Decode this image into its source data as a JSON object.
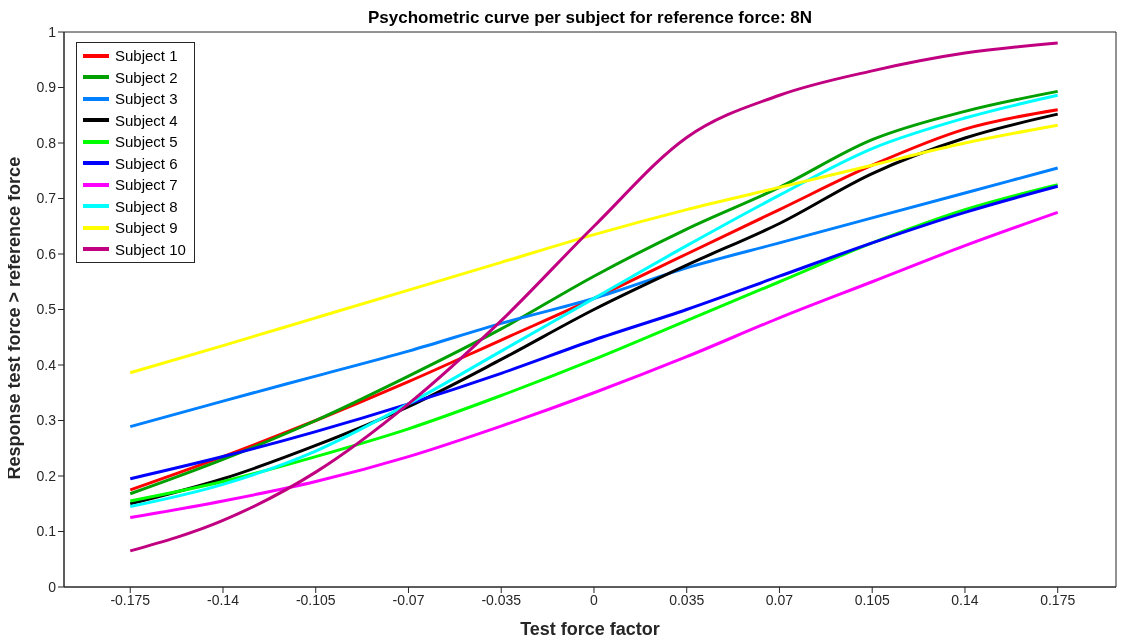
{
  "chart_data": {
    "type": "line",
    "title": "Psychometric curve per subject for reference force: 8N",
    "xlabel": "Test force factor",
    "ylabel": "Response test force > reference force",
    "x": [
      -0.175,
      -0.14,
      -0.105,
      -0.07,
      -0.035,
      0,
      0.035,
      0.07,
      0.105,
      0.14,
      0.175
    ],
    "series": [
      {
        "name": "Subject 1",
        "color": "#ff0000",
        "values": [
          0.175,
          0.235,
          0.3,
          0.37,
          0.445,
          0.52,
          0.6,
          0.68,
          0.76,
          0.825,
          0.86
        ]
      },
      {
        "name": "Subject 2",
        "color": "#00a000",
        "values": [
          0.168,
          0.23,
          0.3,
          0.38,
          0.465,
          0.56,
          0.645,
          0.72,
          0.806,
          0.857,
          0.893
        ]
      },
      {
        "name": "Subject 3",
        "color": "#0080ff",
        "values": [
          0.289,
          0.335,
          0.38,
          0.425,
          0.475,
          0.52,
          0.575,
          0.62,
          0.665,
          0.71,
          0.755
        ]
      },
      {
        "name": "Subject 4",
        "color": "#000000",
        "values": [
          0.15,
          0.195,
          0.255,
          0.325,
          0.41,
          0.5,
          0.58,
          0.655,
          0.745,
          0.809,
          0.852
        ]
      },
      {
        "name": "Subject 5",
        "color": "#00ff00",
        "values": [
          0.155,
          0.19,
          0.235,
          0.285,
          0.345,
          0.41,
          0.48,
          0.55,
          0.62,
          0.68,
          0.725
        ]
      },
      {
        "name": "Subject 6",
        "color": "#0000ff",
        "values": [
          0.195,
          0.235,
          0.28,
          0.33,
          0.385,
          0.445,
          0.5,
          0.56,
          0.62,
          0.675,
          0.722
        ]
      },
      {
        "name": "Subject 7",
        "color": "#ff00ff",
        "values": [
          0.125,
          0.155,
          0.19,
          0.235,
          0.29,
          0.35,
          0.415,
          0.485,
          0.55,
          0.615,
          0.675
        ]
      },
      {
        "name": "Subject 8",
        "color": "#00ffff",
        "values": [
          0.145,
          0.185,
          0.245,
          0.33,
          0.425,
          0.52,
          0.615,
          0.706,
          0.79,
          0.845,
          0.886
        ]
      },
      {
        "name": "Subject 9",
        "color": "#ffff00",
        "values": [
          0.386,
          0.435,
          0.485,
          0.535,
          0.585,
          0.635,
          0.68,
          0.72,
          0.76,
          0.8,
          0.832
        ]
      },
      {
        "name": "Subject 10",
        "color": "#c00080",
        "values": [
          0.065,
          0.12,
          0.207,
          0.33,
          0.48,
          0.65,
          0.81,
          0.886,
          0.93,
          0.962,
          0.98
        ]
      }
    ],
    "xlim": [
      -0.2,
      0.197
    ],
    "xticks": [
      -0.175,
      -0.14,
      -0.105,
      -0.07,
      -0.035,
      0,
      0.035,
      0.07,
      0.105,
      0.14,
      0.175
    ],
    "ylim": [
      0,
      1
    ],
    "yticks": [
      0,
      0.1,
      0.2,
      0.3,
      0.4,
      0.5,
      0.6,
      0.7,
      0.8,
      0.9,
      1
    ],
    "grid": false,
    "legend": "top left",
    "marker": "none",
    "line_style": "solid"
  }
}
